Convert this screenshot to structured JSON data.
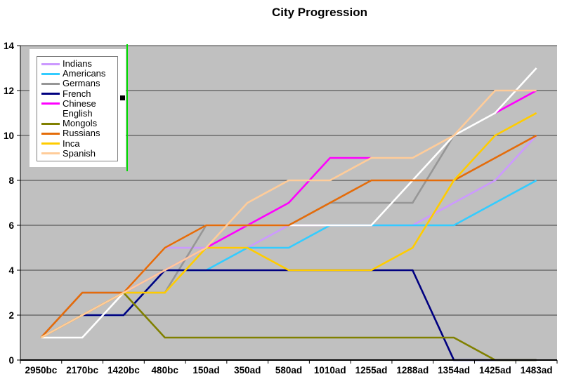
{
  "chart_data": {
    "type": "line",
    "title": "City Progression",
    "xlabel": "",
    "ylabel": "",
    "categories": [
      "2950bc",
      "2170bc",
      "1420bc",
      "480bc",
      "150ad",
      "350ad",
      "580ad",
      "1010ad",
      "1255ad",
      "1288ad",
      "1354ad",
      "1425ad",
      "1483ad"
    ],
    "ylim": [
      0,
      14
    ],
    "y_ticks": [
      0,
      2,
      4,
      6,
      8,
      10,
      12,
      14
    ],
    "grid": true,
    "legend_position": "top-left",
    "plot_bg_color": "#c0c0c0",
    "gridline_color": "#404040",
    "axis_color": "#000000",
    "series": [
      {
        "name": "Indians",
        "color": "#cc99ff",
        "values": [
          1,
          3,
          3,
          5,
          5,
          5,
          6,
          6,
          6,
          6,
          7,
          8,
          10
        ]
      },
      {
        "name": "Americans",
        "color": "#33ccff",
        "values": [
          1,
          2,
          2,
          4,
          4,
          5,
          5,
          6,
          6,
          6,
          6,
          7,
          8
        ]
      },
      {
        "name": "Germans",
        "color": "#969696",
        "values": [
          1,
          3,
          3,
          3,
          6,
          6,
          6,
          7,
          7,
          7,
          10,
          null,
          null
        ]
      },
      {
        "name": "French",
        "color": "#000080",
        "values": [
          null,
          2,
          2,
          4,
          4,
          4,
          4,
          4,
          4,
          4,
          0,
          0,
          0
        ]
      },
      {
        "name": "Chinese",
        "color": "#ff00ff",
        "values": [
          1,
          2,
          3,
          4,
          5,
          6,
          7,
          9,
          9,
          null,
          null,
          11,
          12
        ]
      },
      {
        "name": "English",
        "color": "#ffffff",
        "values": [
          1,
          1,
          3,
          5,
          6,
          6,
          6,
          6,
          6,
          8,
          10,
          11,
          13
        ]
      },
      {
        "name": "Mongols",
        "color": "#808000",
        "values": [
          1,
          2,
          3,
          1,
          1,
          1,
          1,
          1,
          1,
          1,
          1,
          0,
          0
        ]
      },
      {
        "name": "Russians",
        "color": "#e46c0a",
        "values": [
          1,
          3,
          3,
          5,
          6,
          6,
          6,
          7,
          8,
          8,
          8,
          9,
          10
        ]
      },
      {
        "name": "Inca",
        "color": "#ffcc00",
        "values": [
          1,
          2,
          3,
          3,
          5,
          5,
          4,
          4,
          4,
          5,
          8,
          10,
          11
        ]
      },
      {
        "name": "Spanish",
        "color": "#ffcc99",
        "values": [
          1,
          2,
          3,
          4,
          5,
          7,
          8,
          8,
          9,
          9,
          10,
          12,
          12
        ]
      }
    ]
  },
  "artifacts": {
    "selection_handle_color": "#000000",
    "selection_outline_color": "#00dd00"
  }
}
